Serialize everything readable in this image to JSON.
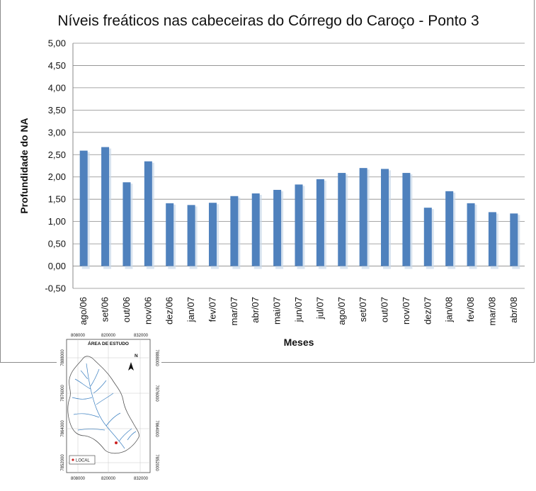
{
  "chart_data": {
    "type": "bar",
    "title": "Níveis freáticos nas cabeceiras do Córrego do Caroço - Ponto 3",
    "xlabel": "Meses",
    "ylabel": "Profundidade do NA",
    "ylim": [
      -0.5,
      5.0
    ],
    "yticks": [
      "5,00",
      "4,50",
      "4,00",
      "3,50",
      "3,00",
      "2,50",
      "2,00",
      "1,50",
      "1,00",
      "0,50",
      "0,00",
      "-0,50"
    ],
    "categories": [
      "ago/06",
      "set/06",
      "out/06",
      "nov/06",
      "dez/06",
      "jan/07",
      "fev/07",
      "mar/07",
      "abr/07",
      "mai/07",
      "jun/07",
      "jul/07",
      "ago/07",
      "set/07",
      "out/07",
      "nov/07",
      "dez/07",
      "jan/08",
      "fev/08",
      "mar/08",
      "abr/08"
    ],
    "values": [
      2.59,
      2.67,
      1.88,
      2.35,
      1.41,
      1.37,
      1.42,
      1.57,
      1.63,
      1.71,
      1.83,
      1.95,
      2.09,
      2.2,
      2.18,
      2.09,
      1.31,
      1.68,
      1.41,
      1.21,
      1.18
    ],
    "grid": true,
    "legend": "none",
    "bar_color": "#4f81bd"
  },
  "map_inset": {
    "title": "ÁREA DE ESTUDO",
    "x_ticks": [
      "808000",
      "820000",
      "832000"
    ],
    "y_ticks": [
      "7888000",
      "7876000",
      "7864000",
      "7852000"
    ],
    "north_label": "N",
    "legend_label": "LOCAL",
    "colors": {
      "rivers": "#3a7fc1",
      "boundary": "#555555",
      "marker": "#cc2222"
    }
  }
}
